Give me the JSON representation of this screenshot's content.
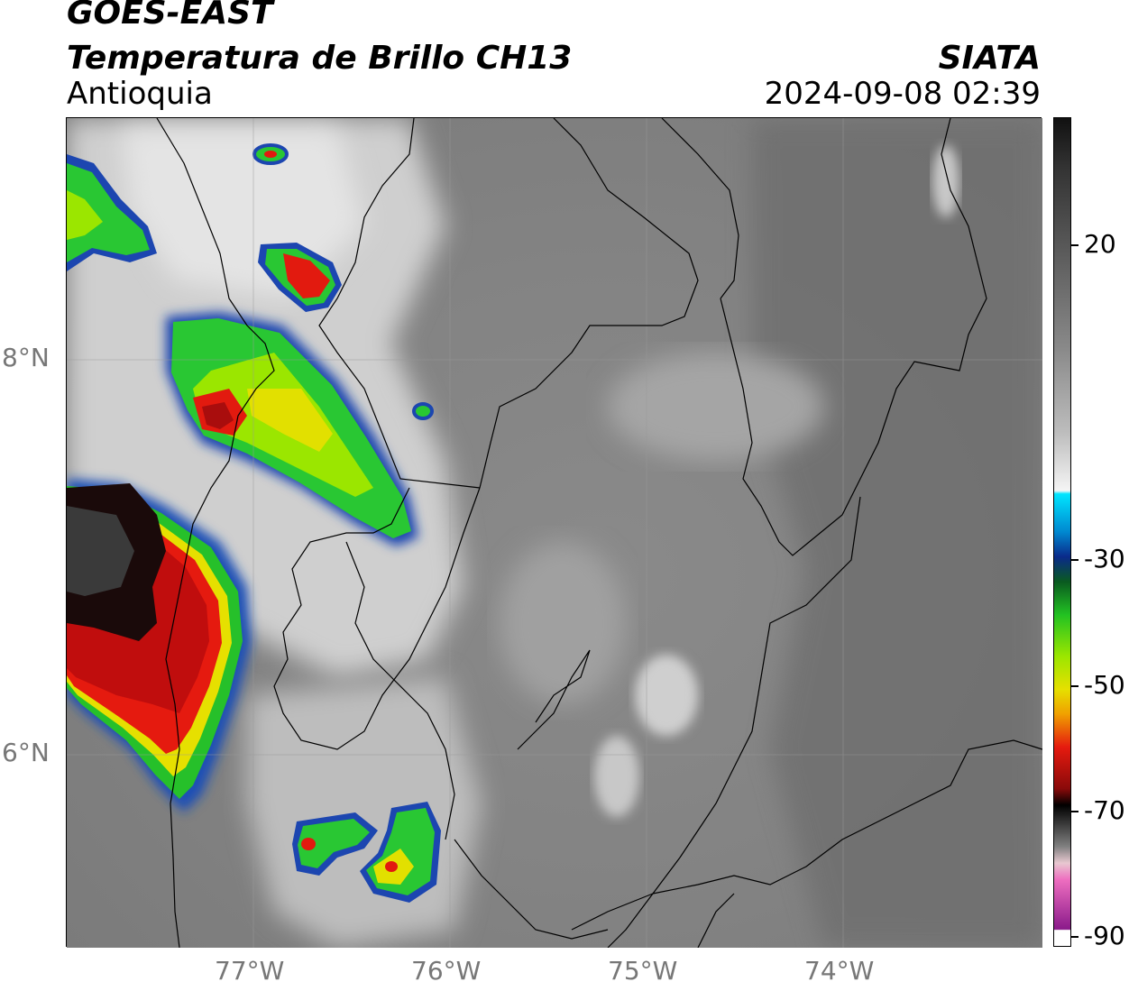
{
  "header": {
    "satellite": "GOES-EAST",
    "product": "Temperatura de Brillo CH13",
    "region": "Antioquia",
    "organization": "SIATA",
    "timestamp": "2024-09-08 02:39"
  },
  "axes": {
    "lat_labels": [
      "8°N",
      "6°N"
    ],
    "lon_labels": [
      "77°W",
      "76°W",
      "75°W",
      "74°W"
    ]
  },
  "colorbar": {
    "tick_labels": [
      "20",
      "-30",
      "-50",
      "-70",
      "-90"
    ]
  }
}
